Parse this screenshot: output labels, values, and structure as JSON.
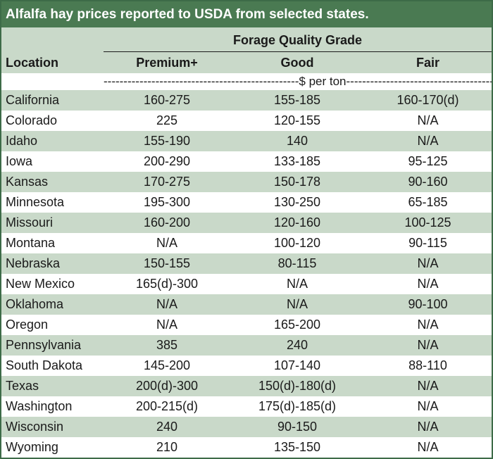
{
  "title": "Alfalfa hay prices reported to USDA from selected states.",
  "grade_header": "Forage Quality Grade",
  "columns": {
    "location": "Location",
    "premium": "Premium+",
    "good": "Good",
    "fair": "Fair"
  },
  "unit_label": "-------------------------------------------------$ per ton-------------------------------------------------------",
  "colors": {
    "title_bg": "#4a7a52",
    "shade": "#c9d9c9",
    "border": "#3d6b48"
  },
  "rows": [
    {
      "location": "California",
      "premium": "160-275",
      "good": "155-185",
      "fair": "160-170(d)"
    },
    {
      "location": "Colorado",
      "premium": "225",
      "good": "120-155",
      "fair": "N/A"
    },
    {
      "location": "Idaho",
      "premium": "155-190",
      "good": "140",
      "fair": "N/A"
    },
    {
      "location": "Iowa",
      "premium": "200-290",
      "good": "133-185",
      "fair": "95-125"
    },
    {
      "location": "Kansas",
      "premium": "170-275",
      "good": "150-178",
      "fair": "90-160"
    },
    {
      "location": "Minnesota",
      "premium": "195-300",
      "good": "130-250",
      "fair": "65-185"
    },
    {
      "location": "Missouri",
      "premium": "160-200",
      "good": "120-160",
      "fair": "100-125"
    },
    {
      "location": "Montana",
      "premium": "N/A",
      "good": "100-120",
      "fair": "90-115"
    },
    {
      "location": "Nebraska",
      "premium": "150-155",
      "good": "80-115",
      "fair": "N/A"
    },
    {
      "location": "New Mexico",
      "premium": "165(d)-300",
      "good": "N/A",
      "fair": "N/A"
    },
    {
      "location": "Oklahoma",
      "premium": "N/A",
      "good": "N/A",
      "fair": "90-100"
    },
    {
      "location": "Oregon",
      "premium": "N/A",
      "good": "165-200",
      "fair": "N/A"
    },
    {
      "location": "Pennsylvania",
      "premium": "385",
      "good": "240",
      "fair": "N/A"
    },
    {
      "location": "South Dakota",
      "premium": "145-200",
      "good": "107-140",
      "fair": "88-110"
    },
    {
      "location": "Texas",
      "premium": "200(d)-300",
      "good": "150(d)-180(d)",
      "fair": "N/A"
    },
    {
      "location": "Washington",
      "premium": "200-215(d)",
      "good": "175(d)-185(d)",
      "fair": "N/A"
    },
    {
      "location": "Wisconsin",
      "premium": "240",
      "good": "90-150",
      "fair": "N/A"
    },
    {
      "location": "Wyoming",
      "premium": "210",
      "good": "135-150",
      "fair": "N/A"
    }
  ]
}
